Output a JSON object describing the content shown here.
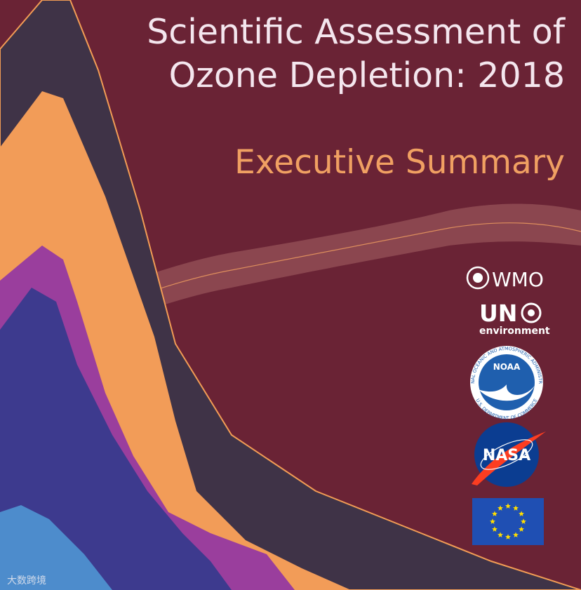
{
  "title": {
    "line1": "Scientific Assessment of",
    "line2": "Ozone Depletion: 2018"
  },
  "subtitle": "Executive Summary",
  "logos": {
    "wmo": "WMO",
    "un": "UN",
    "environment": "environment",
    "noaa": "NOAA",
    "noaa_ring_top": "NATIONAL OCEANIC AND ATMOSPHERIC ADMINISTRATION",
    "noaa_ring_bottom": "U.S. DEPARTMENT OF COMMERCE",
    "nasa": "NASA"
  },
  "watermark": "大数跨境"
}
